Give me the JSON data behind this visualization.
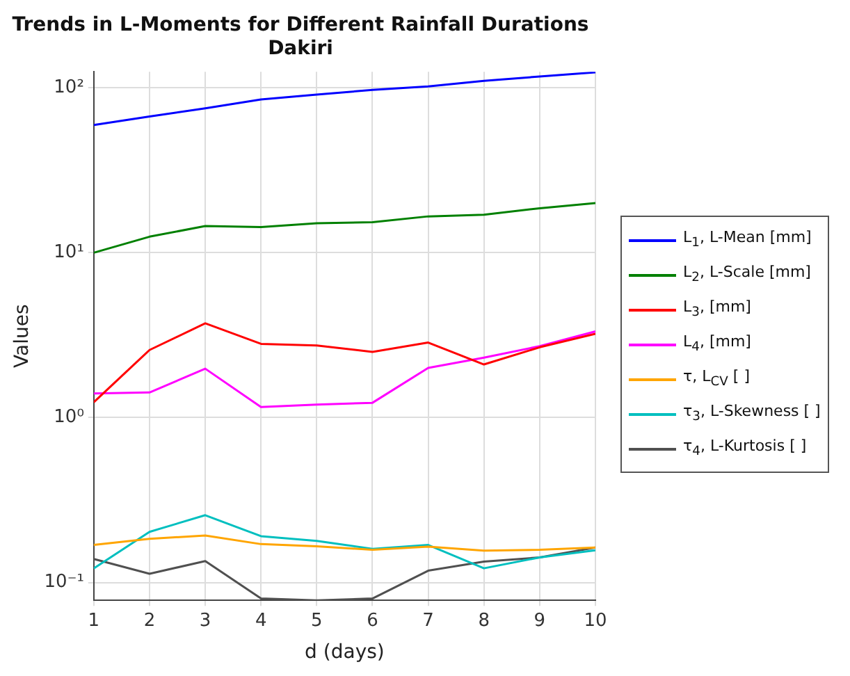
{
  "chart_data": {
    "type": "line",
    "title": "Trends in L-Moments for Different Rainfall Durations",
    "subtitle": "Dakiri",
    "xlabel": "d (days)",
    "ylabel": "Values",
    "x": [
      1,
      2,
      3,
      4,
      5,
      6,
      7,
      8,
      9,
      10
    ],
    "series": [
      {
        "name": "L$_{1}$, L-Mean [mm]",
        "color": "#0000ff",
        "values": [
          59.4,
          67,
          75,
          85,
          91,
          97,
          102,
          110,
          117,
          124
        ]
      },
      {
        "name": "L$_{2}$, L-Scale [mm]",
        "color": "#008000",
        "values": [
          10,
          12.5,
          14.5,
          14.3,
          15.1,
          15.3,
          16.6,
          17,
          18.6,
          20
        ]
      },
      {
        "name": "L$_{3}$, [mm]",
        "color": "#ff0000",
        "values": [
          1.24,
          2.57,
          3.73,
          2.8,
          2.74,
          2.5,
          2.85,
          2.1,
          2.67,
          3.22
        ]
      },
      {
        "name": "L$_{4}$, [mm]",
        "color": "#ff00ff",
        "values": [
          1.4,
          1.42,
          1.98,
          1.16,
          1.2,
          1.23,
          2,
          2.31,
          2.71,
          3.33
        ]
      },
      {
        "name": "τ, L$_{CV}$ [ ]",
        "color": "#ffa500",
        "values": [
          0.169,
          0.184,
          0.193,
          0.171,
          0.166,
          0.158,
          0.165,
          0.156,
          0.158,
          0.163
        ]
      },
      {
        "name": "τ$_{3}$, L-Skewness [ ]",
        "color": "#00bfbf",
        "values": [
          0.122,
          0.203,
          0.256,
          0.191,
          0.179,
          0.16,
          0.169,
          0.122,
          0.142,
          0.157
        ]
      },
      {
        "name": "τ$_{4}$, L-Kurtosis [ ]",
        "color": "#505050",
        "values": [
          0.139,
          0.113,
          0.135,
          0.08,
          0.078,
          0.08,
          0.118,
          0.134,
          0.142,
          0.163
        ]
      }
    ],
    "log": "y",
    "xlim": [
      1,
      10
    ],
    "ylim": [
      0.078,
      125
    ],
    "xticks": [
      1,
      2,
      3,
      4,
      5,
      6,
      7,
      8,
      9,
      10
    ],
    "yticks": [
      {
        "value": 0.1,
        "label": "10⁻¹"
      },
      {
        "value": 1,
        "label": "10⁰"
      },
      {
        "value": 10,
        "label": "10¹"
      },
      {
        "value": 100,
        "label": "10²"
      }
    ],
    "grid": true,
    "legend": "right",
    "marker": "none",
    "line_style": "solid"
  }
}
